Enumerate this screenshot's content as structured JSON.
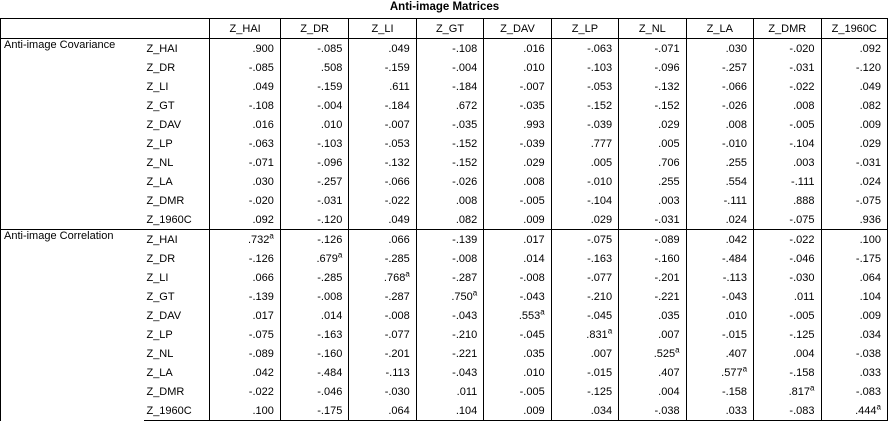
{
  "title": "Anti-image Matrices",
  "columns": [
    "Z_HAI",
    "Z_DR",
    "Z_LI",
    "Z_GT",
    "Z_DAV",
    "Z_LP",
    "Z_NL",
    "Z_LA",
    "Z_DMR",
    "Z_1960C"
  ],
  "sections": [
    {
      "label": "Anti-image Covariance",
      "rows": [
        {
          "name": "Z_HAI",
          "values": [
            ".900",
            "-.085",
            ".049",
            "-.108",
            ".016",
            "-.063",
            "-.071",
            ".030",
            "-.020",
            ".092"
          ]
        },
        {
          "name": "Z_DR",
          "values": [
            "-.085",
            ".508",
            "-.159",
            "-.004",
            ".010",
            "-.103",
            "-.096",
            "-.257",
            "-.031",
            "-.120"
          ]
        },
        {
          "name": "Z_LI",
          "values": [
            ".049",
            "-.159",
            ".611",
            "-.184",
            "-.007",
            "-.053",
            "-.132",
            "-.066",
            "-.022",
            ".049"
          ]
        },
        {
          "name": "Z_GT",
          "values": [
            "-.108",
            "-.004",
            "-.184",
            ".672",
            "-.035",
            "-.152",
            "-.152",
            "-.026",
            ".008",
            ".082"
          ]
        },
        {
          "name": "Z_DAV",
          "values": [
            ".016",
            ".010",
            "-.007",
            "-.035",
            ".993",
            "-.039",
            ".029",
            ".008",
            "-.005",
            ".009"
          ]
        },
        {
          "name": "Z_LP",
          "values": [
            "-.063",
            "-.103",
            "-.053",
            "-.152",
            "-.039",
            ".777",
            ".005",
            "-.010",
            "-.104",
            ".029"
          ]
        },
        {
          "name": "Z_NL",
          "values": [
            "-.071",
            "-.096",
            "-.132",
            "-.152",
            ".029",
            ".005",
            ".706",
            ".255",
            ".003",
            "-.031"
          ]
        },
        {
          "name": "Z_LA",
          "values": [
            ".030",
            "-.257",
            "-.066",
            "-.026",
            ".008",
            "-.010",
            ".255",
            ".554",
            "-.111",
            ".024"
          ]
        },
        {
          "name": "Z_DMR",
          "values": [
            "-.020",
            "-.031",
            "-.022",
            ".008",
            "-.005",
            "-.104",
            ".003",
            "-.111",
            ".888",
            "-.075"
          ]
        },
        {
          "name": "Z_1960C",
          "values": [
            ".092",
            "-.120",
            ".049",
            ".082",
            ".009",
            ".029",
            "-.031",
            ".024",
            "-.075",
            ".936"
          ]
        }
      ]
    },
    {
      "label": "Anti-image Correlation",
      "rows": [
        {
          "name": "Z_HAI",
          "values": [
            ".732",
            "-.126",
            ".066",
            "-.139",
            ".017",
            "-.075",
            "-.089",
            ".042",
            "-.022",
            ".100"
          ],
          "diag": 0
        },
        {
          "name": "Z_DR",
          "values": [
            "-.126",
            ".679",
            "-.285",
            "-.008",
            ".014",
            "-.163",
            "-.160",
            "-.484",
            "-.046",
            "-.175"
          ],
          "diag": 1
        },
        {
          "name": "Z_LI",
          "values": [
            ".066",
            "-.285",
            ".768",
            "-.287",
            "-.008",
            "-.077",
            "-.201",
            "-.113",
            "-.030",
            ".064"
          ],
          "diag": 2
        },
        {
          "name": "Z_GT",
          "values": [
            "-.139",
            "-.008",
            "-.287",
            ".750",
            "-.043",
            "-.210",
            "-.221",
            "-.043",
            ".011",
            ".104"
          ],
          "diag": 3
        },
        {
          "name": "Z_DAV",
          "values": [
            ".017",
            ".014",
            "-.008",
            "-.043",
            ".553",
            "-.045",
            ".035",
            ".010",
            "-.005",
            ".009"
          ],
          "diag": 4
        },
        {
          "name": "Z_LP",
          "values": [
            "-.075",
            "-.163",
            "-.077",
            "-.210",
            "-.045",
            ".831",
            ".007",
            "-.015",
            "-.125",
            ".034"
          ],
          "diag": 5
        },
        {
          "name": "Z_NL",
          "values": [
            "-.089",
            "-.160",
            "-.201",
            "-.221",
            ".035",
            ".007",
            ".525",
            ".407",
            ".004",
            "-.038"
          ],
          "diag": 6
        },
        {
          "name": "Z_LA",
          "values": [
            ".042",
            "-.484",
            "-.113",
            "-.043",
            ".010",
            "-.015",
            ".407",
            ".577",
            "-.158",
            ".033"
          ],
          "diag": 7
        },
        {
          "name": "Z_DMR",
          "values": [
            "-.022",
            "-.046",
            "-.030",
            ".011",
            "-.005",
            "-.125",
            ".004",
            "-.158",
            ".817",
            "-.083"
          ],
          "diag": 8
        },
        {
          "name": "Z_1960C",
          "values": [
            ".100",
            "-.175",
            ".064",
            ".104",
            ".009",
            ".034",
            "-.038",
            ".033",
            "-.083",
            ".444"
          ],
          "diag": 9
        }
      ]
    }
  ],
  "footnote_marker": "a"
}
